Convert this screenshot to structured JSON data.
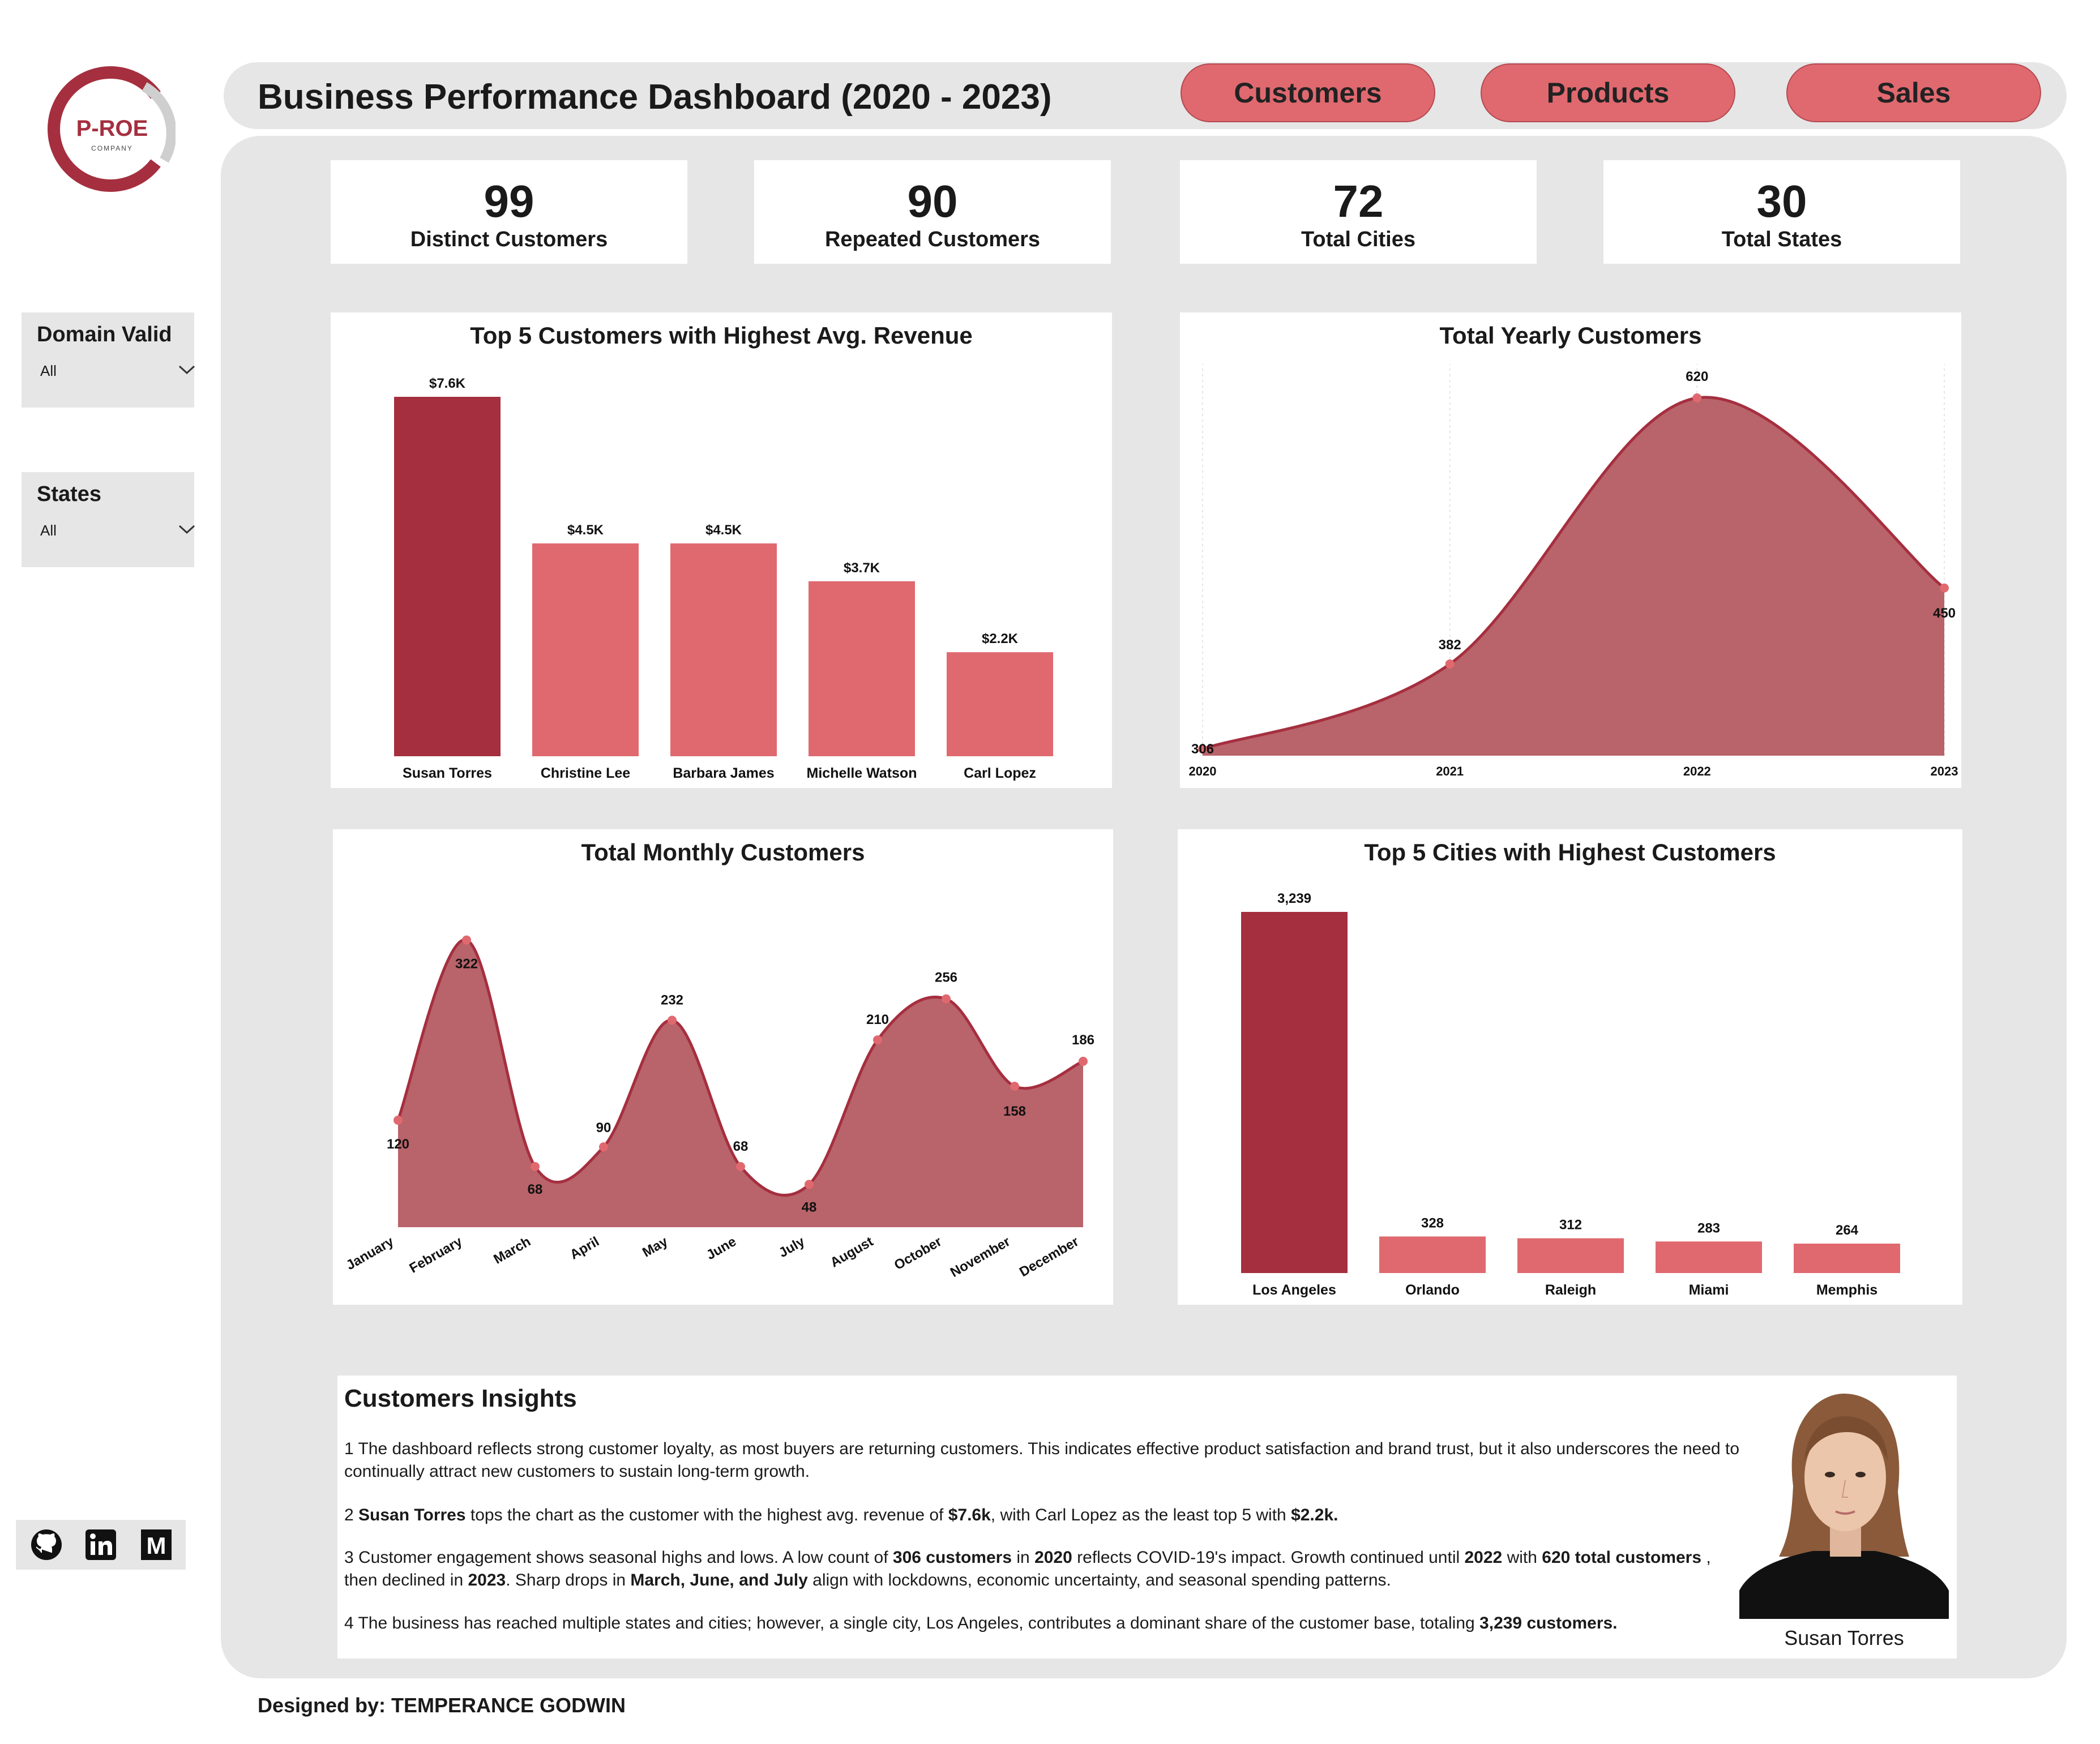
{
  "logo": {
    "text": "P-ROE",
    "subtext": "COMPANY",
    "brand_color": "#a52f3f",
    "ring_color": "#cfcfcf"
  },
  "header": {
    "title": "Business Performance Dashboard (2020 - 2023)",
    "nav": [
      "Customers",
      "Products",
      "Sales"
    ],
    "nav_color": "#e0696f"
  },
  "kpis": [
    {
      "value": "99",
      "label": "Distinct Customers"
    },
    {
      "value": "90",
      "label": "Repeated Customers"
    },
    {
      "value": "72",
      "label": "Total Cities"
    },
    {
      "value": "30",
      "label": "Total States"
    }
  ],
  "slicers": [
    {
      "title": "Domain Valid",
      "value": "All",
      "icon": "chevron-down-icon"
    },
    {
      "title": "States",
      "value": "All",
      "icon": "chevron-down-icon"
    }
  ],
  "colors": {
    "highlight_bar": "#a52f3f",
    "bar": "#e0696f",
    "area_fill": "#b9636a",
    "area_line": "#a52f3f",
    "panel": "#e6e6e6"
  },
  "chart_data": [
    {
      "type": "bar",
      "title": "Top 5 Customers with Highest Avg. Revenue",
      "categories": [
        "Susan Torres",
        "Christine Lee",
        "Barbara James",
        "Michelle Watson",
        "Carl Lopez"
      ],
      "values": [
        7.6,
        4.5,
        4.5,
        3.7,
        2.2
      ],
      "unit": "K",
      "labels": [
        "$7.6K",
        "$4.5K",
        "$4.5K",
        "$3.7K",
        "$2.2K"
      ],
      "highlight_index": 0
    },
    {
      "type": "area",
      "title": "Total Yearly Customers",
      "x": [
        "2020",
        "2021",
        "2022",
        "2023"
      ],
      "values": [
        306,
        382,
        620,
        450
      ]
    },
    {
      "type": "area",
      "title": "Total Monthly Customers",
      "x": [
        "January",
        "February",
        "March",
        "April",
        "May",
        "June",
        "July",
        "August",
        "October",
        "November",
        "December"
      ],
      "values": [
        120,
        322,
        68,
        90,
        232,
        68,
        48,
        210,
        256,
        158,
        186
      ]
    },
    {
      "type": "bar",
      "title": "Top 5 Cities with Highest Customers",
      "categories": [
        "Los Angeles",
        "Orlando",
        "Raleigh",
        "Miami",
        "Memphis"
      ],
      "values": [
        3239,
        328,
        312,
        283,
        264
      ],
      "labels": [
        "3,239",
        "328",
        "312",
        "283",
        "264"
      ],
      "highlight_index": 0
    }
  ],
  "insights": {
    "title": "Customers Insights",
    "paragraphs": [
      [
        {
          "t": "1 The dashboard reflects strong customer loyalty, as most buyers are returning customers. This indicates effective product satisfaction and brand trust, but it also underscores the need to continually attract new customers to sustain long-term growth.",
          "b": false
        }
      ],
      [
        {
          "t": "2 ",
          "b": false
        },
        {
          "t": "Susan Torres",
          "b": true
        },
        {
          "t": " tops the chart as the customer with the highest avg. revenue of ",
          "b": false
        },
        {
          "t": "$7.6k",
          "b": true
        },
        {
          "t": ", with Carl Lopez as the least top 5 with ",
          "b": false
        },
        {
          "t": "$2.2k.",
          "b": true
        }
      ],
      [
        {
          "t": "3 Customer engagement shows seasonal highs and lows. A low count of ",
          "b": false
        },
        {
          "t": "306 customers",
          "b": true
        },
        {
          "t": " in ",
          "b": false
        },
        {
          "t": "2020",
          "b": true
        },
        {
          "t": " reflects COVID-19's impact. Growth continued until ",
          "b": false
        },
        {
          "t": "2022",
          "b": true
        },
        {
          "t": " with ",
          "b": false
        },
        {
          "t": "620 total customers",
          "b": true
        },
        {
          "t": " , then declined in ",
          "b": false
        },
        {
          "t": "2023",
          "b": true
        },
        {
          "t": ". Sharp drops in ",
          "b": false
        },
        {
          "t": "March, June, and July",
          "b": true
        },
        {
          "t": " align with lockdowns, economic uncertainty, and seasonal spending patterns.",
          "b": false
        }
      ],
      [
        {
          "t": "4  The business has reached multiple states and cities; however, a single city, Los Angeles, contributes a dominant share of the customer base, totaling ",
          "b": false
        },
        {
          "t": "3,239 customers.",
          "b": true
        }
      ]
    ],
    "photo_name": "Susan Torres"
  },
  "social": [
    "github-icon",
    "linkedin-icon",
    "medium-icon"
  ],
  "footer": {
    "designer": "Designed by: TEMPERANCE GODWIN"
  }
}
